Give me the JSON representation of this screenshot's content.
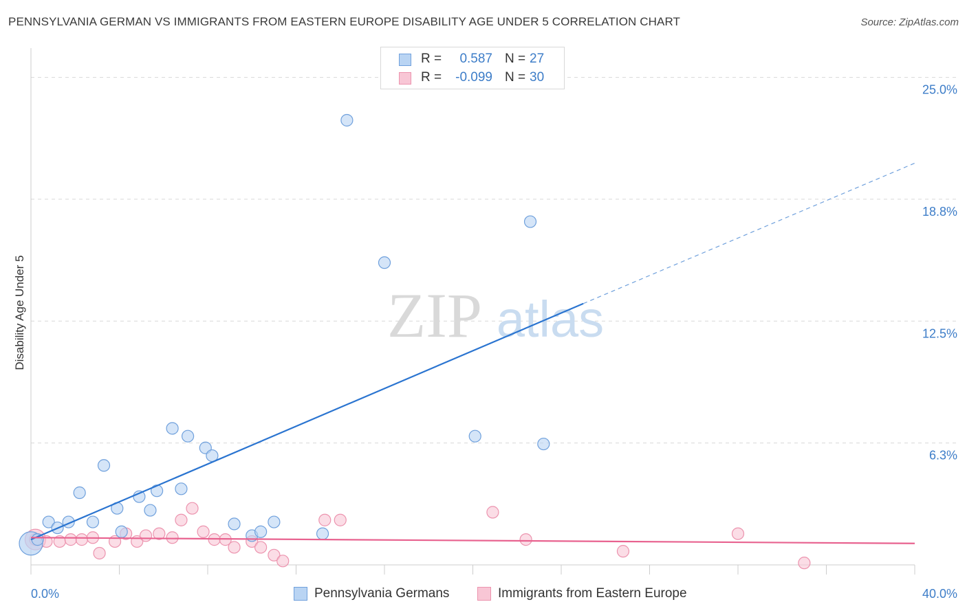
{
  "title": "PENNSYLVANIA GERMAN VS IMMIGRANTS FROM EASTERN EUROPE DISABILITY AGE UNDER 5 CORRELATION CHART",
  "source": "Source: ZipAtlas.com",
  "watermark": {
    "zip": "ZIP",
    "atlas": "atlas"
  },
  "colors": {
    "blue_fill": "#b9d4f3",
    "blue_stroke": "#6fa0dc",
    "blue_line": "#2a74d0",
    "pink_fill": "#f8c6d5",
    "pink_stroke": "#ec93ae",
    "pink_line": "#e8628f",
    "axis_text": "#3d7dc8",
    "grid": "#d8d8d8"
  },
  "legend_stats": [
    {
      "r_label": "R =",
      "r_value": "0.587",
      "n_label": "N =",
      "n_value": "27"
    },
    {
      "r_label": "R =",
      "r_value": "-0.099",
      "n_label": "N =",
      "n_value": "30"
    }
  ],
  "chart_data": {
    "type": "scatter",
    "title": "PENNSYLVANIA GERMAN VS IMMIGRANTS FROM EASTERN EUROPE DISABILITY AGE UNDER 5 CORRELATION CHART",
    "xlabel": "",
    "ylabel": "Disability Age Under 5",
    "xlim": [
      0,
      40
    ],
    "ylim": [
      0,
      26.5
    ],
    "x_tick_labels": [
      "0.0%",
      "40.0%"
    ],
    "y_ticks": [
      6.25,
      12.5,
      18.75,
      25.0
    ],
    "y_tick_labels": [
      "6.3%",
      "12.5%",
      "18.8%",
      "25.0%"
    ],
    "grid": true,
    "legend_position": "bottom",
    "series": [
      {
        "name": "Pennsylvania Germans",
        "color": "#b9d4f3",
        "r": 0.587,
        "n": 27,
        "trend": {
          "x0": 0,
          "y0": 1.3,
          "x1": 25,
          "y1": 13.4,
          "dash_x1": 40,
          "dash_y1": 20.6
        },
        "points": [
          [
            0.3,
            1.3
          ],
          [
            0.8,
            2.2
          ],
          [
            1.2,
            1.9
          ],
          [
            1.7,
            2.2
          ],
          [
            2.2,
            3.7
          ],
          [
            2.8,
            2.2
          ],
          [
            3.3,
            5.1
          ],
          [
            3.9,
            2.9
          ],
          [
            4.1,
            1.7
          ],
          [
            4.9,
            3.5
          ],
          [
            5.4,
            2.8
          ],
          [
            5.7,
            3.8
          ],
          [
            6.4,
            7.0
          ],
          [
            6.8,
            3.9
          ],
          [
            7.1,
            6.6
          ],
          [
            7.9,
            6.0
          ],
          [
            8.2,
            5.6
          ],
          [
            9.2,
            2.1
          ],
          [
            10.0,
            1.5
          ],
          [
            10.4,
            1.7
          ],
          [
            11.0,
            2.2
          ],
          [
            13.2,
            1.6
          ],
          [
            14.3,
            22.8
          ],
          [
            16.0,
            15.5
          ],
          [
            20.1,
            6.6
          ],
          [
            22.6,
            17.6
          ],
          [
            23.2,
            6.2
          ]
        ]
      },
      {
        "name": "Immigrants from Eastern Europe",
        "color": "#f8c6d5",
        "r": -0.099,
        "n": 30,
        "trend": {
          "x0": 0,
          "y0": 1.4,
          "x1": 40,
          "y1": 1.1
        },
        "points": [
          [
            0.2,
            1.3
          ],
          [
            0.7,
            1.2
          ],
          [
            1.3,
            1.2
          ],
          [
            1.8,
            1.3
          ],
          [
            2.3,
            1.3
          ],
          [
            2.8,
            1.4
          ],
          [
            3.1,
            0.6
          ],
          [
            3.8,
            1.2
          ],
          [
            4.3,
            1.6
          ],
          [
            4.8,
            1.2
          ],
          [
            5.2,
            1.5
          ],
          [
            5.8,
            1.6
          ],
          [
            6.4,
            1.4
          ],
          [
            6.8,
            2.3
          ],
          [
            7.3,
            2.9
          ],
          [
            7.8,
            1.7
          ],
          [
            8.3,
            1.3
          ],
          [
            8.8,
            1.3
          ],
          [
            9.2,
            0.9
          ],
          [
            10.0,
            1.2
          ],
          [
            10.4,
            0.9
          ],
          [
            11.0,
            0.5
          ],
          [
            11.4,
            0.2
          ],
          [
            13.3,
            2.3
          ],
          [
            14.0,
            2.3
          ],
          [
            20.9,
            2.7
          ],
          [
            22.4,
            1.3
          ],
          [
            26.8,
            0.7
          ],
          [
            32.0,
            1.6
          ],
          [
            35.0,
            0.1
          ]
        ]
      }
    ]
  },
  "bottom_legend": [
    {
      "label": "Pennsylvania Germans"
    },
    {
      "label": "Immigrants from Eastern Europe"
    }
  ]
}
